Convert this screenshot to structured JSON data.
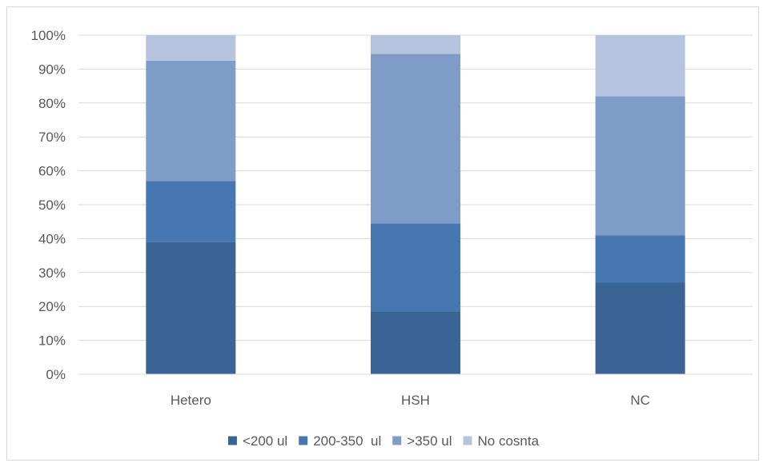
{
  "chart_data": {
    "type": "bar",
    "stacked": true,
    "percent": true,
    "categories": [
      "Hetero",
      "HSH",
      "NC"
    ],
    "series": [
      {
        "name": "<200 ul",
        "color": "#3b6496",
        "values": [
          39,
          18.5,
          27
        ]
      },
      {
        "name": "200-350  ul",
        "color": "#4677b1",
        "values": [
          18,
          26,
          14
        ]
      },
      {
        "name": ">350 ul",
        "color": "#7f9cc8",
        "values": [
          35.5,
          50,
          41
        ]
      },
      {
        "name": "No cosnta",
        "color": "#b5c3de",
        "values": [
          7.5,
          5.5,
          18
        ]
      }
    ],
    "ylim": [
      0,
      100
    ],
    "yticks": [
      "0%",
      "10%",
      "20%",
      "30%",
      "40%",
      "50%",
      "60%",
      "70%",
      "80%",
      "90%",
      "100%"
    ],
    "grid": true,
    "legend": "bottom"
  }
}
